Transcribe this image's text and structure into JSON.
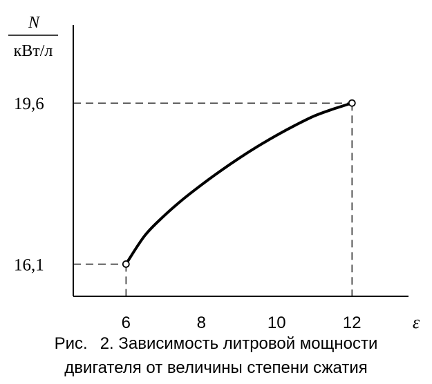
{
  "chart_data": {
    "type": "line",
    "ylabel_top": "N",
    "ylabel_bottom": "кВт/л",
    "xlabel": "ε",
    "x": [
      6,
      6.5,
      7,
      7.5,
      8,
      8.5,
      9,
      9.5,
      10,
      10.5,
      11,
      11.5,
      12
    ],
    "y": [
      16.1,
      16.72,
      17.14,
      17.5,
      17.82,
      18.12,
      18.4,
      18.66,
      18.9,
      19.12,
      19.32,
      19.47,
      19.6
    ],
    "xticks": [
      {
        "value": 6,
        "label": "6"
      },
      {
        "value": 8,
        "label": "8"
      },
      {
        "value": 10,
        "label": "10"
      },
      {
        "value": 12,
        "label": "12"
      }
    ],
    "yticks": [
      {
        "value": 16.1,
        "label": "16,1"
      },
      {
        "value": 19.6,
        "label": "19,6"
      }
    ],
    "xlim": [
      4.6,
      13.5
    ],
    "ylim": [
      15.4,
      21.3
    ],
    "grid": false,
    "endpoints_marked": true
  },
  "caption": {
    "prefix": "Рис.",
    "line1": "2. Зависимость литровой мощности",
    "line2": "двигателя от величины степени сжатия"
  }
}
